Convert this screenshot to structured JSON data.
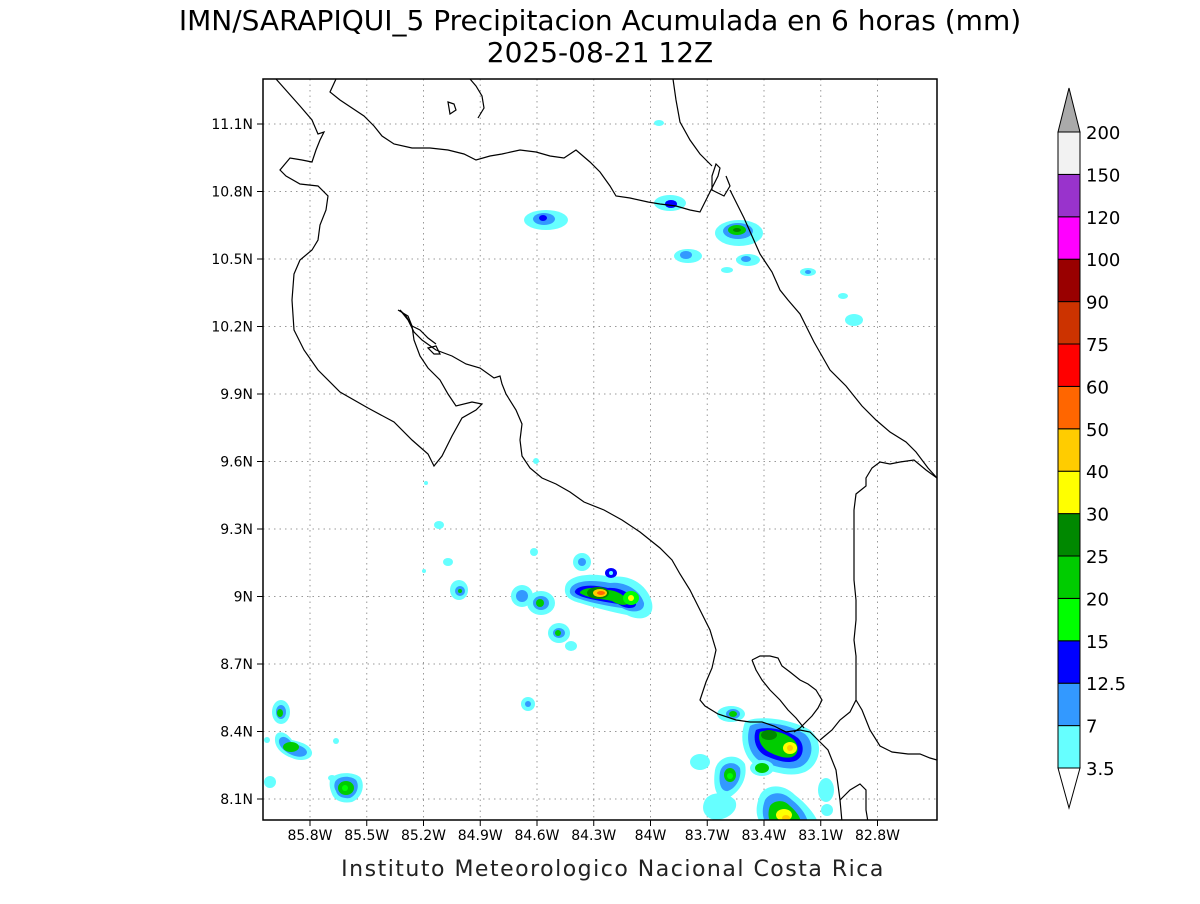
{
  "title": {
    "line1": "IMN/SARAPIQUI_5 Precipitacion Acumulada en 6 horas (mm)",
    "line2": "2025-08-21 12Z"
  },
  "credit": "Instituto Meteorologico Nacional Costa Rica",
  "map": {
    "lon_range": [
      -86.0,
      -83.0
    ],
    "lat_range": [
      8.0,
      11.3
    ],
    "lon_ticks": [
      "85.8W",
      "85.5W",
      "85.2W",
      "84.9W",
      "84.6W",
      "84.3W",
      "84W",
      "83.7W",
      "83.4W",
      "83.1W",
      "82.8W"
    ],
    "lat_ticks": [
      "11.1N",
      "10.8N",
      "10.5N",
      "10.2N",
      "9.9N",
      "9.6N",
      "9.3N",
      "9N",
      "8.7N",
      "8.4N",
      "8.1N"
    ],
    "grid": "dotted"
  },
  "colorbar": {
    "labels": [
      "3.5",
      "7",
      "12.5",
      "15",
      "20",
      "25",
      "30",
      "40",
      "50",
      "60",
      "75",
      "90",
      "100",
      "120",
      "150",
      "200"
    ],
    "colors": [
      "#ffffff",
      "#66ffff",
      "#3399ff",
      "#0000ff",
      "#00ff00",
      "#00cc00",
      "#008800",
      "#ffff00",
      "#ffcc00",
      "#ff6600",
      "#ff0000",
      "#cc3300",
      "#990000",
      "#ff00ff",
      "#9933cc",
      "#f2f2f2",
      "#aaaaaa"
    ]
  }
}
